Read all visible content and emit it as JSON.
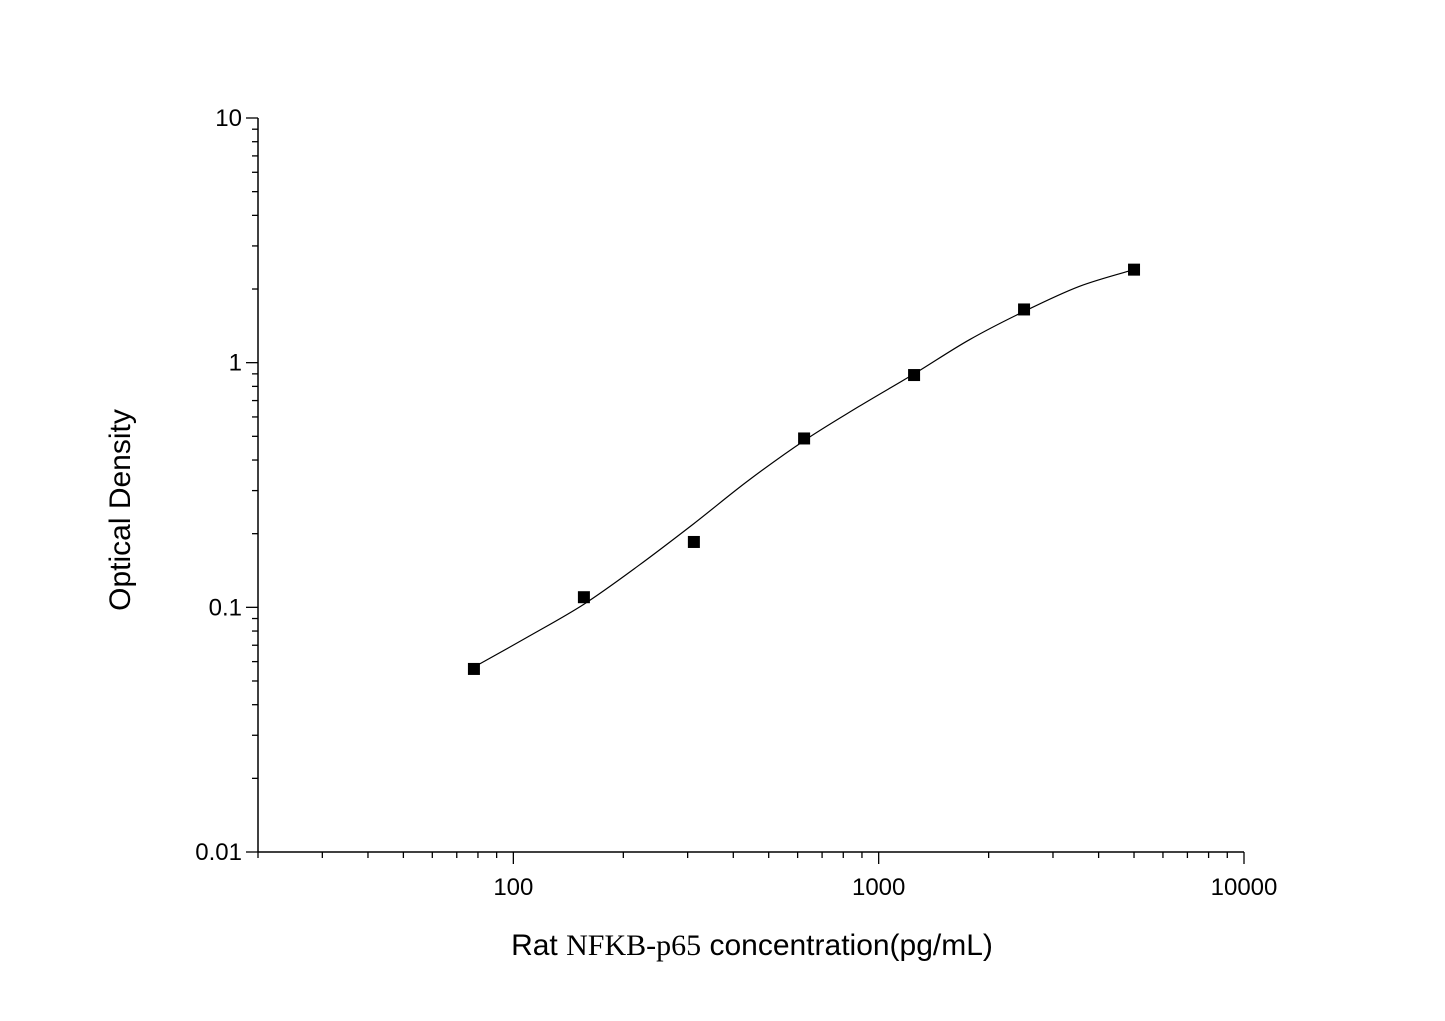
{
  "chart_data": {
    "type": "scatter",
    "title": "",
    "xlabel_parts": [
      "Rat ",
      "NFKB-p65",
      " concentration(pg/mL)"
    ],
    "ylabel": "Optical Density",
    "x_scale": "log",
    "y_scale": "log",
    "xlim": [
      20,
      10000
    ],
    "ylim": [
      0.01,
      10
    ],
    "x_ticks": [
      100,
      1000,
      10000
    ],
    "x_tick_labels": [
      "100",
      "1000",
      "10000"
    ],
    "y_ticks": [
      0.01,
      0.1,
      1,
      10
    ],
    "y_tick_labels": [
      "0.01",
      "0.1",
      "1",
      "10"
    ],
    "grid": false,
    "legend": "none",
    "marker_color": "#000000",
    "curve_color": "#000000",
    "series": [
      {
        "points": [
          {
            "x": 78,
            "y": 0.056
          },
          {
            "x": 156,
            "y": 0.11
          },
          {
            "x": 312,
            "y": 0.185
          },
          {
            "x": 625,
            "y": 0.49
          },
          {
            "x": 1250,
            "y": 0.89
          },
          {
            "x": 2500,
            "y": 1.65
          },
          {
            "x": 5000,
            "y": 2.4
          }
        ]
      }
    ],
    "fit_curve": {
      "x": [
        78,
        110,
        156,
        220,
        312,
        440,
        625,
        880,
        1250,
        1770,
        2500,
        3540,
        5000
      ],
      "y": [
        0.057,
        0.076,
        0.103,
        0.148,
        0.22,
        0.33,
        0.48,
        0.66,
        0.9,
        1.24,
        1.62,
        2.05,
        2.4
      ]
    }
  }
}
